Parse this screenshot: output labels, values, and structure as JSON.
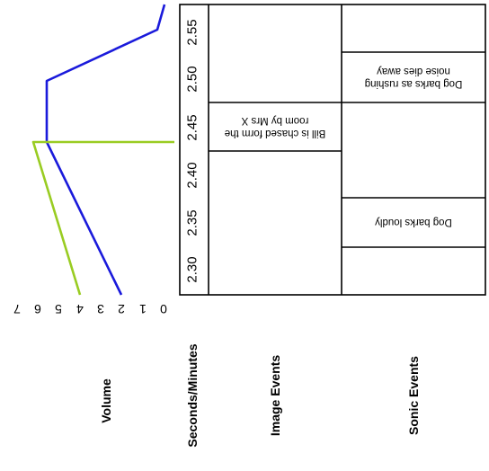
{
  "headers": {
    "volume": "Volume",
    "seconds": "Seconds/Minutes",
    "image": "Image Events",
    "sonic": "Sonic Events"
  },
  "volume_ticks": [
    "0",
    "1",
    "2",
    "3",
    "4",
    "5",
    "6",
    "7"
  ],
  "time_ticks": [
    "2.30",
    "2.35",
    "2.40",
    "2.45",
    "2.50",
    "2.55"
  ],
  "image_events": [
    {
      "line1": "Bill is chased form the",
      "line2": "room by Mrs X"
    }
  ],
  "sonic_events": [
    {
      "line1": "Dog barks loudly",
      "line2": ""
    },
    {
      "line1": "Dog barks as rushing",
      "line2": "noise dies away"
    }
  ],
  "colors": {
    "blue_series": "#1a1adb",
    "green_series": "#99cc22"
  },
  "chart_data": {
    "type": "line",
    "orientation": "rotated 180 degrees; time axis runs vertically",
    "xlabel": "Seconds/Minutes",
    "ylabel": "Volume",
    "ylim": [
      0,
      7
    ],
    "series": [
      {
        "color": "#1a1adb",
        "points": [
          [
            2.3,
            2
          ],
          [
            2.44,
            6
          ],
          [
            2.51,
            6
          ],
          [
            2.556,
            2.85
          ],
          [
            2.58,
            2.4
          ]
        ]
      },
      {
        "color": "#99cc22",
        "points": [
          [
            2.3,
            4
          ],
          [
            2.44,
            6.3
          ],
          [
            2.44,
            0.0
          ]
        ]
      }
    ]
  }
}
